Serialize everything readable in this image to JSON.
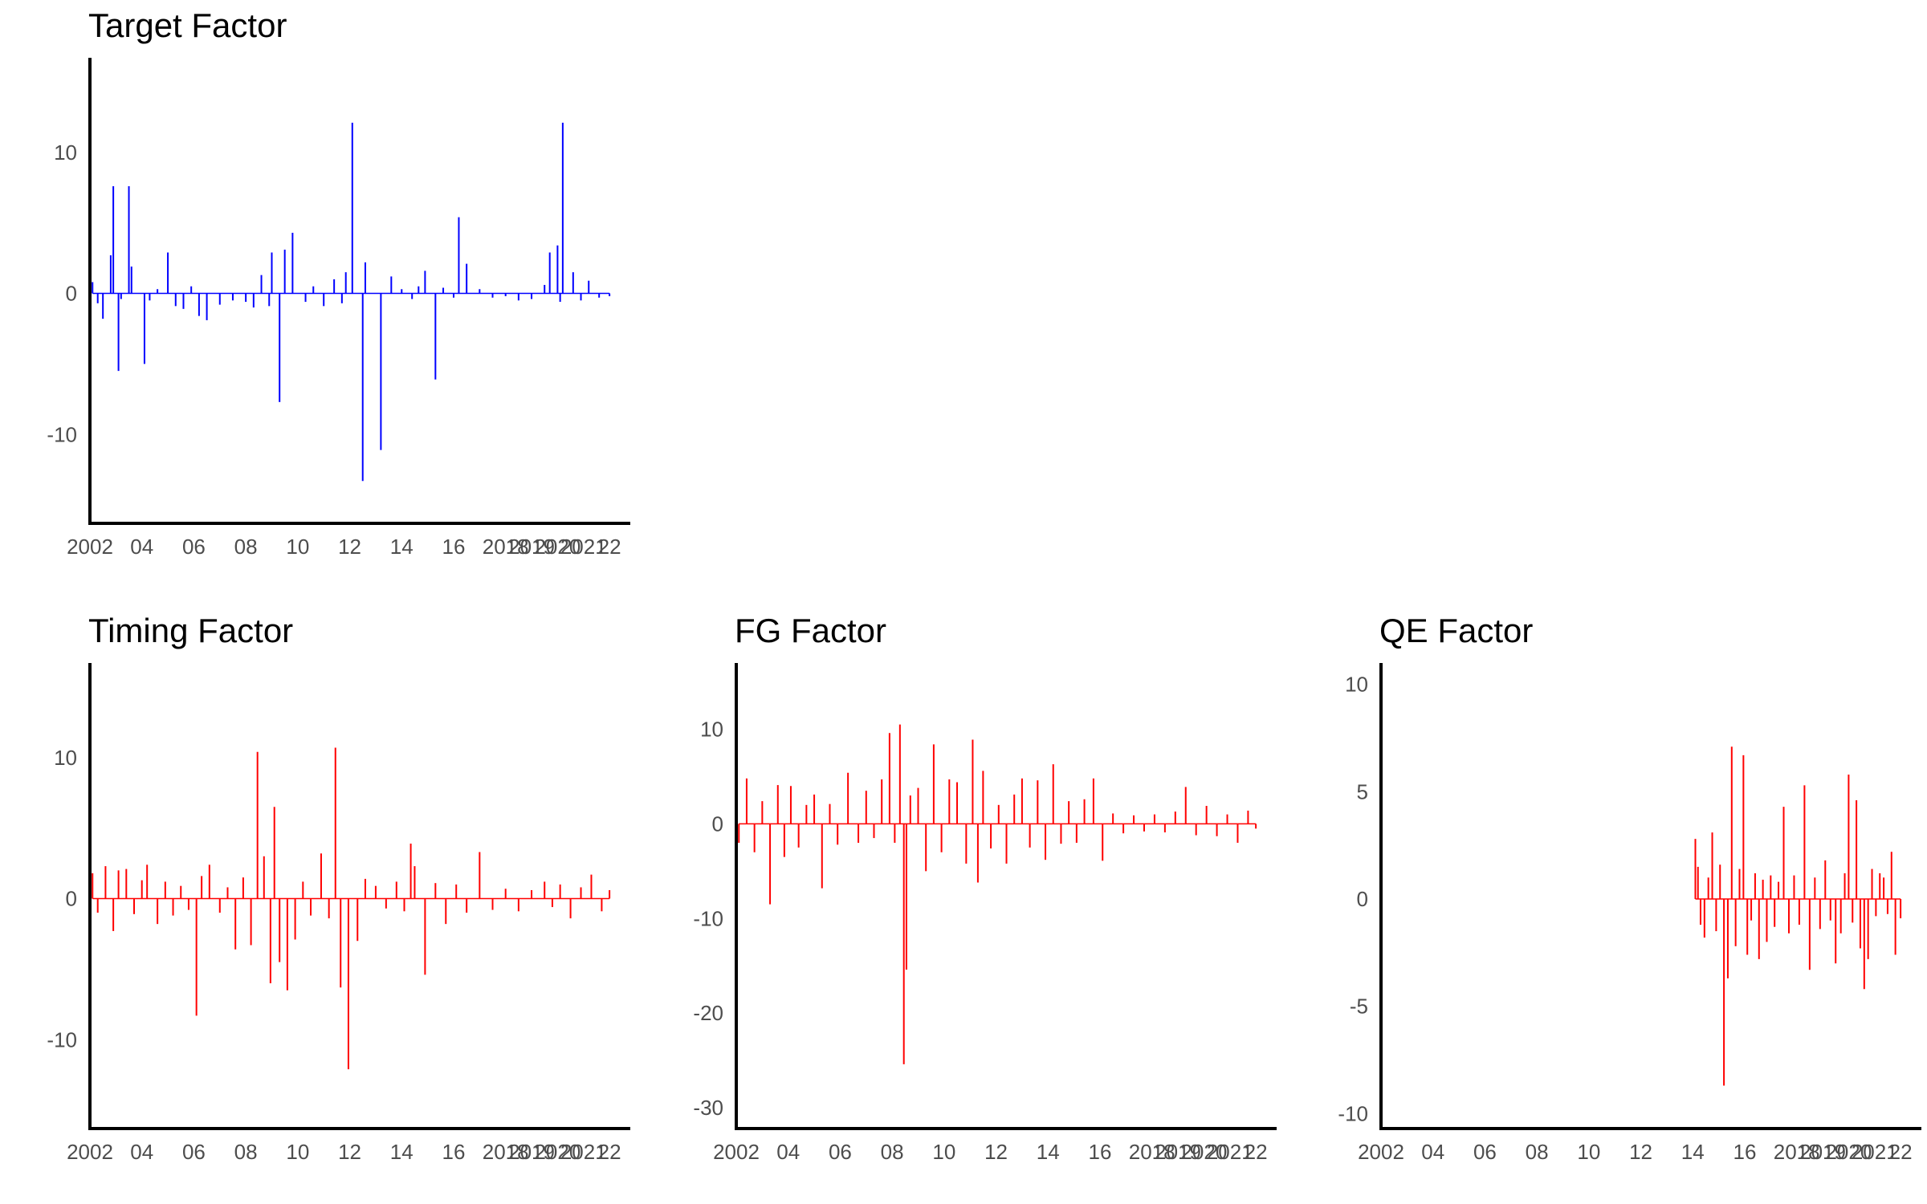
{
  "chart_data": [
    {
      "type": "bar",
      "title": "Target Factor",
      "color": "#0000ff",
      "xlabel": "",
      "ylabel": "",
      "xlim": [
        2002.0,
        2022.8
      ],
      "ylim": [
        -16.3,
        16.7
      ],
      "yticks": [
        -10,
        0,
        10
      ],
      "ytick_labels": [
        "-10",
        "0",
        "10"
      ],
      "xticks": [
        2002,
        2004,
        2006,
        2008,
        2010,
        2012,
        2014,
        2016,
        2018,
        2019,
        2020,
        2021,
        2022
      ],
      "xtick_labels": [
        "2002",
        "04",
        "06",
        "08",
        "10",
        "12",
        "14",
        "16",
        "2018",
        "2019",
        "2020",
        "2021",
        "22"
      ],
      "x": [
        2002.1,
        2002.3,
        2002.5,
        2002.8,
        2002.9,
        2003.1,
        2003.2,
        2003.5,
        2003.6,
        2004.1,
        2004.3,
        2004.6,
        2005.0,
        2005.3,
        2005.6,
        2005.9,
        2006.2,
        2006.5,
        2007.0,
        2007.5,
        2008.0,
        2008.3,
        2008.6,
        2008.9,
        2009.0,
        2009.3,
        2009.5,
        2009.8,
        2010.3,
        2010.6,
        2011.0,
        2011.4,
        2011.7,
        2011.85,
        2012.1,
        2012.5,
        2012.6,
        2013.2,
        2013.6,
        2014.0,
        2014.4,
        2014.65,
        2014.9,
        2015.3,
        2015.6,
        2016.0,
        2016.2,
        2016.5,
        2017.0,
        2017.5,
        2018.0,
        2018.5,
        2019.0,
        2019.5,
        2019.7,
        2020.0,
        2020.1,
        2020.2,
        2020.6,
        2020.9,
        2021.2,
        2021.6,
        2022.0
      ],
      "values": [
        0.8,
        -0.7,
        -1.8,
        2.7,
        7.6,
        -5.5,
        -0.4,
        7.6,
        1.9,
        -5.0,
        -0.5,
        0.3,
        2.9,
        -0.9,
        -1.1,
        0.5,
        -1.6,
        -1.9,
        -0.8,
        -0.5,
        -0.6,
        -1.0,
        1.3,
        -0.9,
        2.9,
        -7.7,
        3.1,
        4.3,
        -0.6,
        0.5,
        -0.9,
        1.0,
        -0.7,
        1.5,
        12.1,
        -13.3,
        2.2,
        -11.1,
        1.2,
        0.3,
        -0.4,
        0.5,
        1.6,
        -6.1,
        0.4,
        -0.3,
        5.4,
        2.1,
        0.3,
        -0.3,
        -0.2,
        -0.5,
        -0.4,
        0.6,
        2.9,
        3.4,
        -0.6,
        12.1,
        1.5,
        -0.5,
        0.9,
        -0.3,
        -0.2
      ]
    },
    {
      "type": "bar",
      "title": "Timing Factor",
      "color": "#ff0000",
      "xlabel": "",
      "ylabel": "",
      "xlim": [
        2002.0,
        2022.8
      ],
      "ylim": [
        -16.3,
        16.7
      ],
      "yticks": [
        -10,
        0,
        10
      ],
      "ytick_labels": [
        "-10",
        "0",
        "10"
      ],
      "xticks": [
        2002,
        2004,
        2006,
        2008,
        2010,
        2012,
        2014,
        2016,
        2018,
        2019,
        2020,
        2021,
        2022
      ],
      "xtick_labels": [
        "2002",
        "04",
        "06",
        "08",
        "10",
        "12",
        "14",
        "16",
        "2018",
        "2019",
        "2020",
        "2021",
        "22"
      ],
      "x": [
        2002.1,
        2002.3,
        2002.6,
        2002.9,
        2003.1,
        2003.4,
        2003.7,
        2004.0,
        2004.2,
        2004.6,
        2004.9,
        2005.2,
        2005.5,
        2005.8,
        2006.1,
        2006.3,
        2006.6,
        2007.0,
        2007.3,
        2007.6,
        2007.9,
        2008.2,
        2008.45,
        2008.7,
        2008.95,
        2009.1,
        2009.3,
        2009.6,
        2009.9,
        2010.2,
        2010.5,
        2010.9,
        2011.2,
        2011.45,
        2011.65,
        2011.95,
        2012.3,
        2012.6,
        2013.0,
        2013.4,
        2013.8,
        2014.1,
        2014.35,
        2014.5,
        2014.9,
        2015.3,
        2015.7,
        2016.1,
        2016.5,
        2017.0,
        2017.5,
        2018.0,
        2018.5,
        2019.0,
        2019.5,
        2019.8,
        2020.1,
        2020.5,
        2020.9,
        2021.3,
        2021.7,
        2022.0
      ],
      "values": [
        1.8,
        -1.0,
        2.3,
        -2.3,
        2.0,
        2.1,
        -1.1,
        1.3,
        2.4,
        -1.8,
        1.2,
        -1.2,
        0.9,
        -0.8,
        -8.3,
        1.6,
        2.4,
        -1.0,
        0.8,
        -3.6,
        1.5,
        -3.3,
        10.4,
        3.0,
        -6.0,
        6.5,
        -4.5,
        -6.5,
        -2.9,
        1.2,
        -1.2,
        3.2,
        -1.4,
        10.7,
        -6.3,
        -12.1,
        -3.0,
        1.4,
        0.9,
        -0.7,
        1.2,
        -0.9,
        3.9,
        2.3,
        -5.4,
        1.1,
        -1.8,
        1.0,
        -1.0,
        3.3,
        -0.8,
        0.7,
        -0.9,
        0.6,
        1.2,
        -0.6,
        1.0,
        -1.4,
        0.8,
        1.7,
        -0.9,
        0.6
      ]
    },
    {
      "type": "bar",
      "title": "FG Factor",
      "color": "#ff0000",
      "xlabel": "",
      "ylabel": "",
      "xlim": [
        2002.0,
        2022.8
      ],
      "ylim": [
        -32.2,
        17.0
      ],
      "yticks": [
        -30,
        -20,
        -10,
        0,
        10
      ],
      "ytick_labels": [
        "-30",
        "-20",
        "-10",
        "0",
        "10"
      ],
      "xticks": [
        2002,
        2004,
        2006,
        2008,
        2010,
        2012,
        2014,
        2016,
        2018,
        2019,
        2020,
        2021,
        2022
      ],
      "xtick_labels": [
        "2002",
        "04",
        "06",
        "08",
        "10",
        "12",
        "14",
        "16",
        "2018",
        "2019",
        "2020",
        "2021",
        "22"
      ],
      "x": [
        2002.1,
        2002.4,
        2002.7,
        2003.0,
        2003.3,
        2003.6,
        2003.85,
        2004.1,
        2004.4,
        2004.7,
        2005.0,
        2005.3,
        2005.6,
        2005.9,
        2006.3,
        2006.7,
        2007.0,
        2007.3,
        2007.6,
        2007.9,
        2008.1,
        2008.3,
        2008.45,
        2008.55,
        2008.7,
        2009.0,
        2009.3,
        2009.6,
        2009.9,
        2010.2,
        2010.5,
        2010.85,
        2011.1,
        2011.3,
        2011.5,
        2011.8,
        2012.1,
        2012.4,
        2012.7,
        2013.0,
        2013.3,
        2013.6,
        2013.9,
        2014.2,
        2014.5,
        2014.8,
        2015.1,
        2015.4,
        2015.75,
        2016.1,
        2016.5,
        2016.9,
        2017.3,
        2017.7,
        2018.1,
        2018.5,
        2018.9,
        2019.3,
        2019.7,
        2020.1,
        2020.5,
        2020.9,
        2021.3,
        2021.7,
        2022.0
      ],
      "values": [
        -2.0,
        4.8,
        -3.0,
        2.4,
        -8.5,
        4.1,
        -3.5,
        4.0,
        -2.5,
        2.0,
        3.1,
        -6.8,
        2.1,
        -2.2,
        5.4,
        -2.0,
        3.5,
        -1.5,
        4.7,
        9.6,
        -2.0,
        10.5,
        -25.4,
        -15.4,
        3.0,
        3.8,
        -5.0,
        8.4,
        -3.0,
        4.7,
        4.4,
        -4.2,
        8.9,
        -6.2,
        5.6,
        -2.6,
        2.0,
        -4.2,
        3.1,
        4.8,
        -2.5,
        4.6,
        -3.8,
        6.3,
        -2.1,
        2.4,
        -2.0,
        2.6,
        4.8,
        -3.9,
        1.1,
        -1.0,
        0.9,
        -0.8,
        1.0,
        -0.9,
        1.3,
        3.9,
        -1.2,
        1.9,
        -1.3,
        1.0,
        -2.0,
        1.4,
        -0.5
      ]
    },
    {
      "type": "bar",
      "title": "QE Factor",
      "color": "#ff0000",
      "xlabel": "",
      "ylabel": "",
      "xlim": [
        2002.0,
        2022.8
      ],
      "ylim": [
        -10.7,
        11.0
      ],
      "yticks": [
        -10,
        -5,
        0,
        5,
        10
      ],
      "ytick_labels": [
        "-10",
        "-5",
        "0",
        "5",
        "10"
      ],
      "xticks": [
        2002,
        2004,
        2006,
        2008,
        2010,
        2012,
        2014,
        2016,
        2018,
        2019,
        2020,
        2021,
        2022
      ],
      "xtick_labels": [
        "2002",
        "04",
        "06",
        "08",
        "10",
        "12",
        "14",
        "16",
        "2018",
        "2019",
        "2020",
        "2021",
        "22"
      ],
      "x": [
        2014.1,
        2014.2,
        2014.3,
        2014.45,
        2014.6,
        2014.75,
        2014.9,
        2015.05,
        2015.2,
        2015.35,
        2015.5,
        2015.65,
        2015.8,
        2015.95,
        2016.1,
        2016.25,
        2016.4,
        2016.55,
        2016.7,
        2016.85,
        2017.0,
        2017.15,
        2017.3,
        2017.5,
        2017.7,
        2017.9,
        2018.1,
        2018.3,
        2018.5,
        2018.7,
        2018.9,
        2019.1,
        2019.3,
        2019.5,
        2019.7,
        2019.85,
        2020.0,
        2020.15,
        2020.3,
        2020.45,
        2020.6,
        2020.75,
        2020.9,
        2021.05,
        2021.2,
        2021.35,
        2021.5,
        2021.65,
        2021.8,
        2022.0
      ],
      "values": [
        2.8,
        1.5,
        -1.2,
        -1.8,
        1.0,
        3.1,
        -1.5,
        1.6,
        -8.7,
        -3.7,
        7.1,
        -2.2,
        1.4,
        6.7,
        -2.6,
        -1.0,
        1.2,
        -2.8,
        0.9,
        -2.0,
        1.1,
        -1.3,
        0.8,
        4.3,
        -1.6,
        1.1,
        -1.2,
        5.3,
        -3.3,
        1.0,
        -1.4,
        1.8,
        -1.0,
        -3.0,
        -1.6,
        1.2,
        5.8,
        -1.1,
        4.6,
        -2.3,
        -4.2,
        -2.8,
        1.4,
        -0.8,
        1.2,
        1.0,
        -0.7,
        2.2,
        -2.6,
        -0.9
      ]
    }
  ]
}
